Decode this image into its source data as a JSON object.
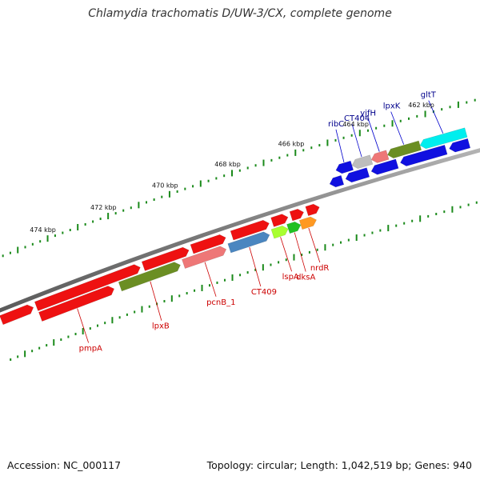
{
  "title": "Chlamydia trachomatis D/UW-3/CX, complete genome",
  "footer": {
    "accession": "Accession: NC_000117",
    "summary": "Topology: circular; Length: 1,042,519 bp; Genes: 940"
  },
  "colors": {
    "forward_gene": "#1010e0",
    "reverse_gene": "#ee1111",
    "olive_gene": "#6b8e23",
    "pink_gene": "#ee7777",
    "steel_gene": "#4a86c0",
    "lime_gene": "#a8ff30",
    "green_gene": "#22c022",
    "orange_gene": "#ff9922",
    "grey_gene": "#bdbdbd",
    "cyan_gene": "#00eeee",
    "backbone": "#7a7a7a",
    "ticks": "#1a8a1a",
    "forward_label": "#00008b",
    "reverse_label": "#cc0000"
  },
  "scale": {
    "kbp_labels": [
      "462 kbp",
      "464 kbp",
      "466 kbp",
      "468 kbp",
      "470 kbp",
      "472 kbp",
      "474 kbp"
    ],
    "kbp_positions": [
      462,
      464,
      466,
      468,
      470,
      472,
      474
    ]
  },
  "genes": {
    "forward": [
      {
        "name": "gltT",
        "start": 461.0,
        "end": 462.4,
        "color": "cyan"
      },
      {
        "name": "lpxK",
        "start": 462.4,
        "end": 463.4,
        "color": "olive"
      },
      {
        "name": "yjfH",
        "start": 463.4,
        "end": 463.9,
        "color": "pink"
      },
      {
        "name": "CT404",
        "start": 463.9,
        "end": 464.5,
        "color": "grey"
      },
      {
        "name": "ribC",
        "start": 464.5,
        "end": 465.0,
        "color": "forward"
      },
      {
        "name": "",
        "start": 461.0,
        "end": 461.6,
        "color": "forward"
      },
      {
        "name": "",
        "start": 461.7,
        "end": 463.1,
        "color": "forward"
      },
      {
        "name": "",
        "start": 463.2,
        "end": 464.0,
        "color": "forward"
      },
      {
        "name": "",
        "start": 464.1,
        "end": 464.8,
        "color": "forward"
      },
      {
        "name": "",
        "start": 464.9,
        "end": 465.3,
        "color": "forward"
      }
    ],
    "reverse": [
      {
        "name": "",
        "start": 465.8,
        "end": 466.2,
        "color": "reverse"
      },
      {
        "name": "",
        "start": 466.3,
        "end": 466.7,
        "color": "reverse"
      },
      {
        "name": "",
        "start": 466.8,
        "end": 467.3,
        "color": "reverse"
      },
      {
        "name": "",
        "start": 467.4,
        "end": 468.6,
        "color": "reverse"
      },
      {
        "name": "",
        "start": 468.8,
        "end": 469.9,
        "color": "reverse"
      },
      {
        "name": "",
        "start": 470.0,
        "end": 471.5,
        "color": "reverse"
      },
      {
        "name": "",
        "start": 471.6,
        "end": 475.1,
        "color": "reverse"
      },
      {
        "name": "",
        "start": 475.2,
        "end": 476.3,
        "color": "reverse"
      },
      {
        "name": "nrdR",
        "start": 466.0,
        "end": 466.5,
        "color": "orange"
      },
      {
        "name": "dksA",
        "start": 466.5,
        "end": 466.9,
        "color": "green"
      },
      {
        "name": "lspA",
        "start": 466.9,
        "end": 467.4,
        "color": "lime"
      },
      {
        "name": "CT409",
        "start": 467.5,
        "end": 468.8,
        "color": "steel"
      },
      {
        "name": "pcnB_1",
        "start": 468.9,
        "end": 470.3,
        "color": "pink"
      },
      {
        "name": "lpxB",
        "start": 470.4,
        "end": 472.4,
        "color": "olive"
      },
      {
        "name": "pmpA",
        "start": 472.6,
        "end": 475.1,
        "color": "reverse"
      }
    ]
  }
}
